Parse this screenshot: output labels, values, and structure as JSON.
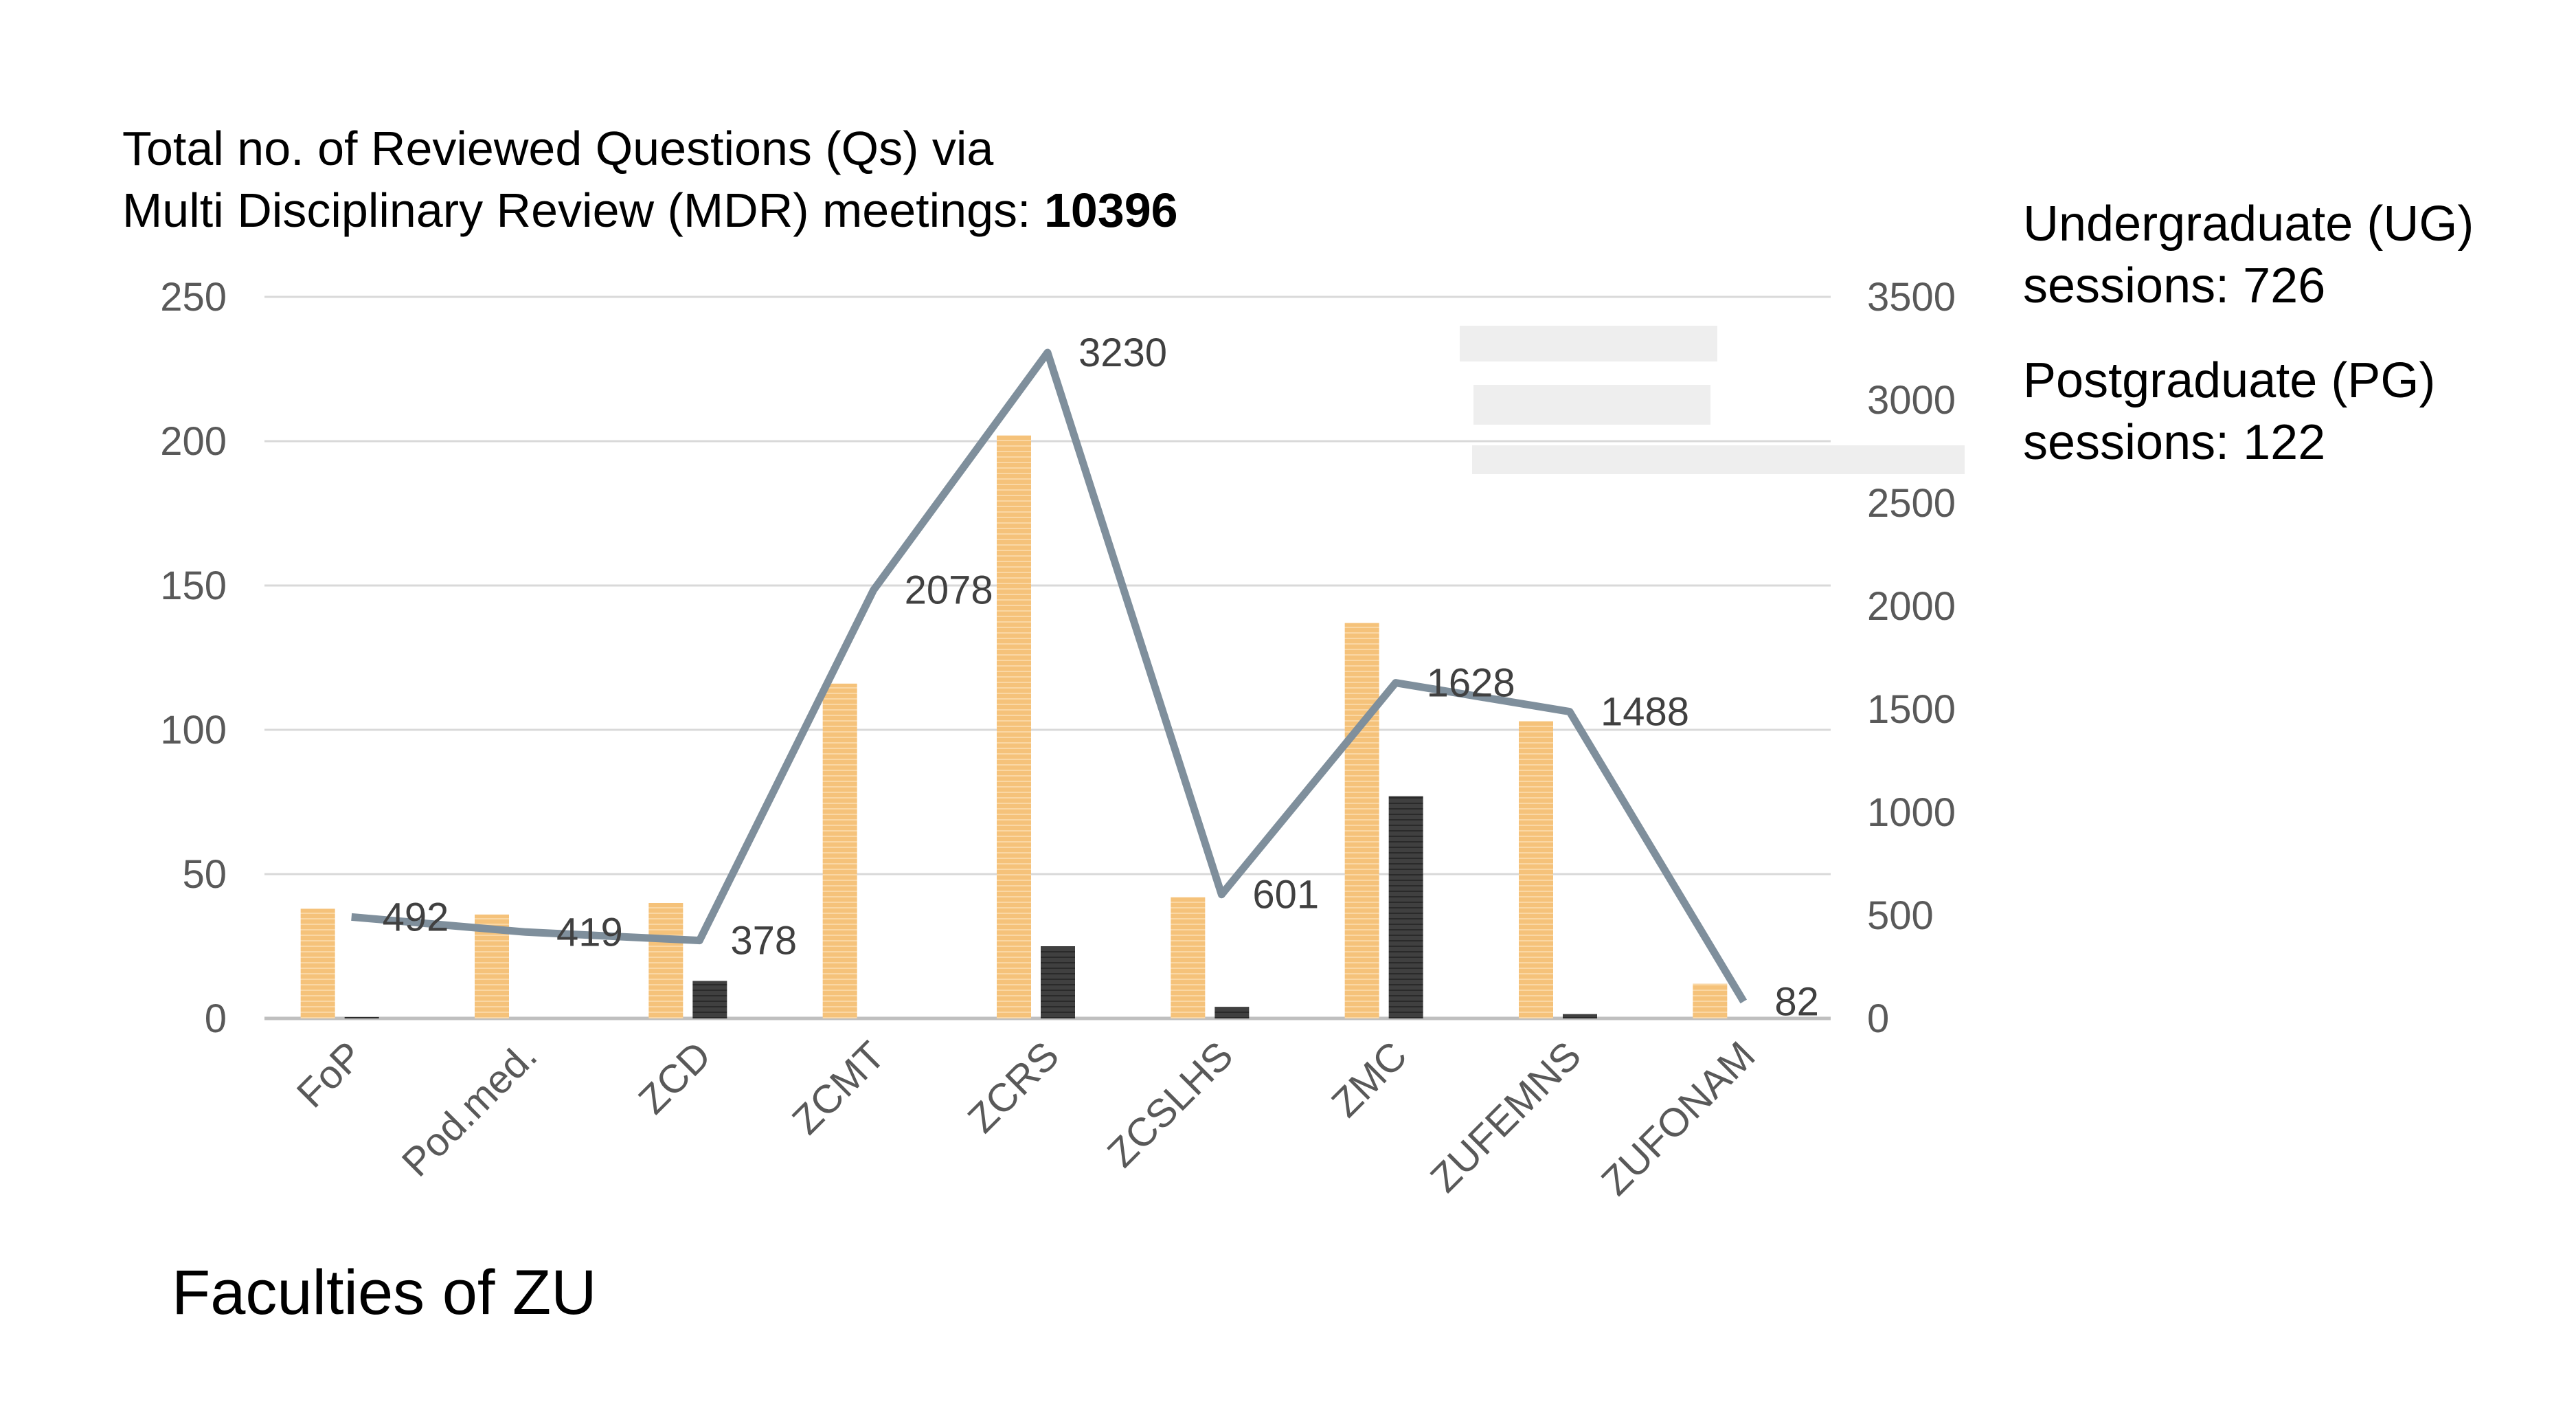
{
  "chart_data": {
    "type": "bar",
    "title_line1": "Total no. of Reviewed Questions (Qs) via",
    "title_line2_prefix": "Multi Disciplinary Review (MDR) meetings: ",
    "title_line2_value": "10396",
    "xlabel": "Faculties of ZU",
    "categories": [
      "FoP",
      "Pod.med.",
      "ZCD",
      "ZCMT",
      "ZCRS",
      "ZCSLHS",
      "ZMC",
      "ZUFEMNS",
      "ZUFONAM"
    ],
    "left_axis": {
      "min": 0,
      "max": 250,
      "ticks": [
        0,
        50,
        100,
        150,
        200,
        250
      ]
    },
    "right_axis": {
      "min": 0,
      "max": 3500,
      "ticks": [
        0,
        500,
        1000,
        1500,
        2000,
        2500,
        3000,
        3500
      ]
    },
    "series": [
      {
        "axis": "left",
        "kind": "bar",
        "color": "#F5C27A",
        "values": [
          38,
          36,
          40,
          116,
          202,
          42,
          137,
          103,
          12
        ]
      },
      {
        "axis": "left",
        "kind": "bar",
        "color": "#404040",
        "values": [
          0.5,
          0,
          13,
          0,
          25,
          4,
          77,
          1.5,
          0
        ]
      },
      {
        "axis": "right",
        "kind": "line",
        "color": "#7F8F9C",
        "values": [
          492,
          419,
          378,
          2078,
          3230,
          601,
          1628,
          1488,
          82
        ]
      }
    ],
    "grid": true,
    "side_notes": {
      "ug_line1": "Undergraduate (UG)",
      "ug_line2": "sessions: 726",
      "pg_line1": "Postgraduate (PG)",
      "pg_line2": "sessions: 122"
    }
  }
}
